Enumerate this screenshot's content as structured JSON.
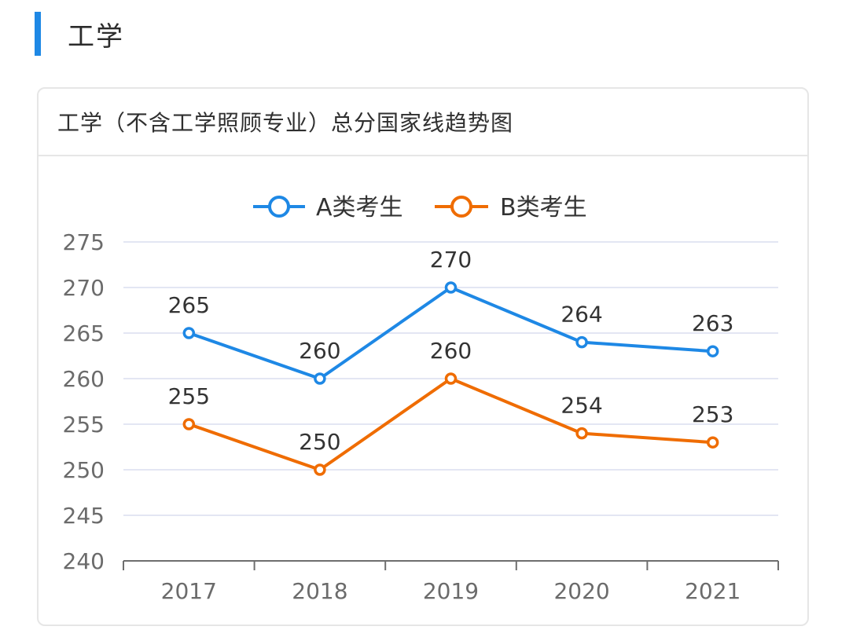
{
  "section": {
    "title": "工学"
  },
  "card": {
    "title": "工学（不含工学照顾专业）总分国家线趋势图"
  },
  "colors": {
    "accent": "#1e88e5",
    "series_a": "#1e88e5",
    "series_b": "#ef6c00",
    "grid": "#e3e6f3",
    "axis": "#6e6e6e"
  },
  "chart_data": {
    "type": "line",
    "title": "工学（不含工学照顾专业）总分国家线趋势图",
    "xlabel": "",
    "ylabel": "",
    "categories": [
      "2017",
      "2018",
      "2019",
      "2020",
      "2021"
    ],
    "series": [
      {
        "name": "A类考生",
        "values": [
          265,
          260,
          270,
          264,
          263
        ]
      },
      {
        "name": "B类考生",
        "values": [
          255,
          250,
          260,
          254,
          253
        ]
      }
    ],
    "ylim": [
      240,
      275
    ],
    "yticks": [
      240,
      245,
      250,
      255,
      260,
      265,
      270,
      275
    ],
    "grid": true,
    "legend_position": "top-center",
    "data_labels": true
  }
}
